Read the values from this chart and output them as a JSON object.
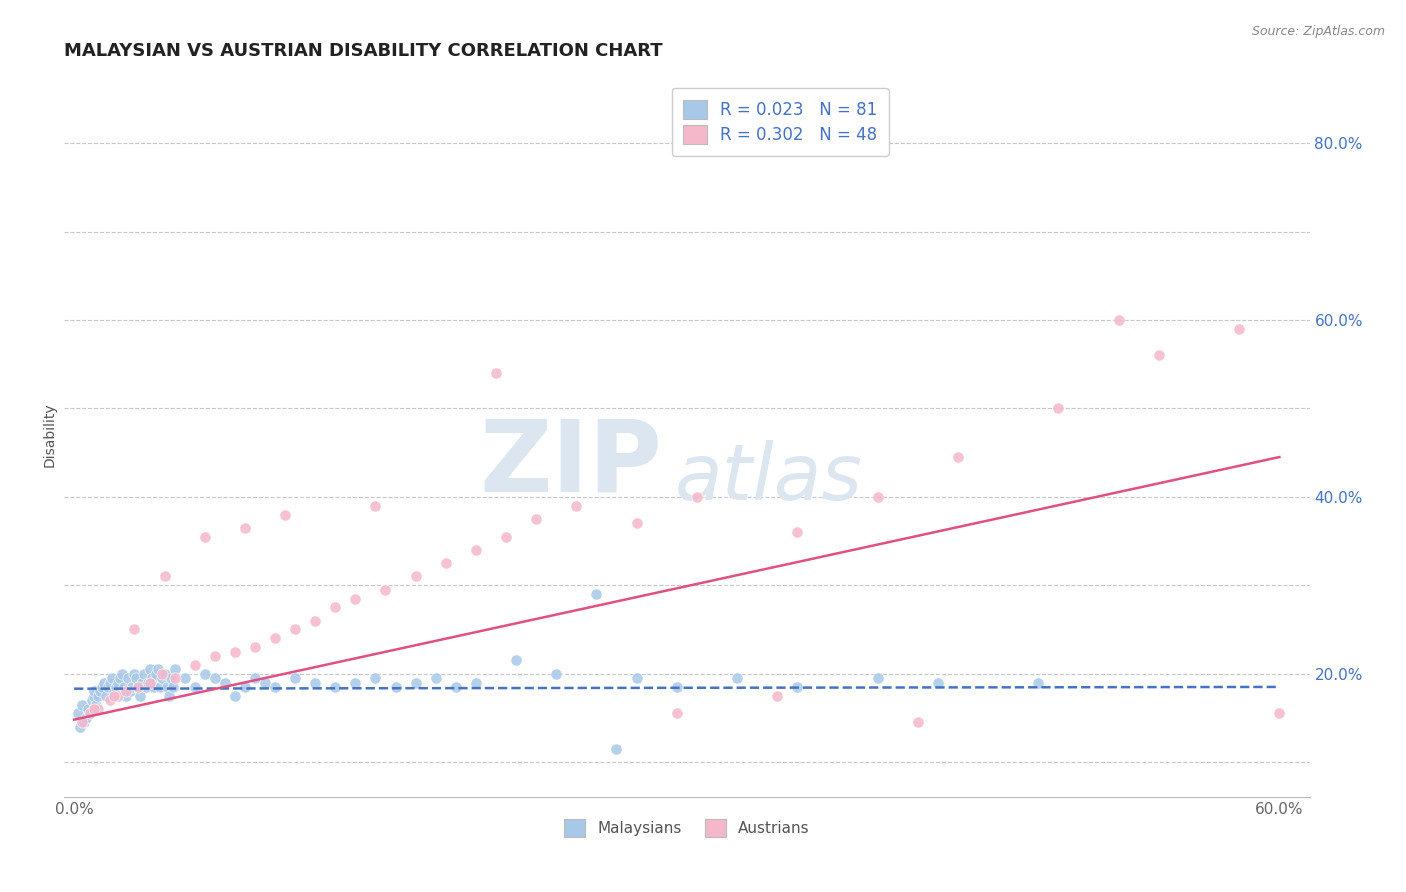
{
  "title": "MALAYSIAN VS AUSTRIAN DISABILITY CORRELATION CHART",
  "source": "Source: ZipAtlas.com",
  "ylabel": "Disability",
  "xlim": [
    -0.005,
    0.615
  ],
  "ylim": [
    0.06,
    0.88
  ],
  "xticks": [
    0.0,
    0.1,
    0.2,
    0.3,
    0.4,
    0.5,
    0.6
  ],
  "xticklabels": [
    "0.0%",
    "",
    "",
    "",
    "",
    "",
    "60.0%"
  ],
  "yticks": [
    0.1,
    0.2,
    0.3,
    0.4,
    0.5,
    0.6,
    0.7,
    0.8
  ],
  "yticklabels": [
    "",
    "20.0%",
    "",
    "40.0%",
    "",
    "60.0%",
    "",
    "80.0%"
  ],
  "legend_label1": "Malaysians",
  "legend_label2": "Austrians",
  "color_blue": "#a8c8e8",
  "color_pink": "#f5b8cb",
  "color_blue_line": "#4472c4",
  "color_pink_line": "#e05080",
  "watermark_zip": "ZIP",
  "watermark_atlas": "atlas",
  "watermark_color": "#dce6f0",
  "watermark_fontsize_zip": 72,
  "watermark_fontsize_atlas": 56,
  "title_fontsize": 13,
  "tick_fontsize": 11,
  "background_color": "#ffffff",
  "grid_color": "#c8c8c8",
  "malaysian_trendline": [
    0.0,
    0.6,
    0.183,
    0.185
  ],
  "austrian_trendline": [
    0.0,
    0.6,
    0.148,
    0.445
  ],
  "malay_x": [
    0.002,
    0.003,
    0.004,
    0.005,
    0.006,
    0.007,
    0.008,
    0.009,
    0.01,
    0.01,
    0.011,
    0.012,
    0.013,
    0.014,
    0.015,
    0.016,
    0.017,
    0.018,
    0.019,
    0.02,
    0.021,
    0.022,
    0.023,
    0.024,
    0.025,
    0.026,
    0.027,
    0.028,
    0.029,
    0.03,
    0.031,
    0.032,
    0.033,
    0.034,
    0.035,
    0.036,
    0.037,
    0.038,
    0.039,
    0.04,
    0.041,
    0.042,
    0.043,
    0.044,
    0.045,
    0.046,
    0.047,
    0.048,
    0.049,
    0.05,
    0.055,
    0.06,
    0.065,
    0.07,
    0.075,
    0.08,
    0.085,
    0.09,
    0.095,
    0.1,
    0.11,
    0.12,
    0.13,
    0.14,
    0.15,
    0.16,
    0.17,
    0.18,
    0.19,
    0.2,
    0.22,
    0.24,
    0.26,
    0.28,
    0.3,
    0.33,
    0.36,
    0.4,
    0.43,
    0.48,
    0.27
  ],
  "malay_y": [
    0.155,
    0.14,
    0.165,
    0.145,
    0.15,
    0.16,
    0.155,
    0.17,
    0.175,
    0.18,
    0.165,
    0.175,
    0.18,
    0.185,
    0.19,
    0.175,
    0.185,
    0.19,
    0.195,
    0.18,
    0.185,
    0.19,
    0.195,
    0.2,
    0.185,
    0.175,
    0.195,
    0.18,
    0.185,
    0.2,
    0.195,
    0.185,
    0.175,
    0.19,
    0.2,
    0.185,
    0.19,
    0.205,
    0.195,
    0.185,
    0.2,
    0.205,
    0.185,
    0.195,
    0.2,
    0.185,
    0.175,
    0.195,
    0.185,
    0.205,
    0.195,
    0.185,
    0.2,
    0.195,
    0.19,
    0.175,
    0.185,
    0.195,
    0.19,
    0.185,
    0.195,
    0.19,
    0.185,
    0.19,
    0.195,
    0.185,
    0.19,
    0.195,
    0.185,
    0.19,
    0.215,
    0.2,
    0.29,
    0.195,
    0.185,
    0.195,
    0.185,
    0.195,
    0.19,
    0.19,
    0.115
  ],
  "austria_x": [
    0.004,
    0.008,
    0.012,
    0.018,
    0.022,
    0.026,
    0.032,
    0.038,
    0.044,
    0.05,
    0.06,
    0.07,
    0.08,
    0.09,
    0.1,
    0.11,
    0.12,
    0.13,
    0.14,
    0.155,
    0.17,
    0.185,
    0.2,
    0.215,
    0.23,
    0.25,
    0.28,
    0.31,
    0.36,
    0.4,
    0.44,
    0.49,
    0.54,
    0.58,
    0.01,
    0.02,
    0.03,
    0.045,
    0.065,
    0.085,
    0.105,
    0.15,
    0.21,
    0.3,
    0.35,
    0.42,
    0.52,
    0.6
  ],
  "austria_y": [
    0.145,
    0.155,
    0.16,
    0.17,
    0.175,
    0.18,
    0.185,
    0.19,
    0.2,
    0.195,
    0.21,
    0.22,
    0.225,
    0.23,
    0.24,
    0.25,
    0.26,
    0.275,
    0.285,
    0.295,
    0.31,
    0.325,
    0.34,
    0.355,
    0.375,
    0.39,
    0.37,
    0.4,
    0.36,
    0.4,
    0.445,
    0.5,
    0.56,
    0.59,
    0.16,
    0.175,
    0.25,
    0.31,
    0.355,
    0.365,
    0.38,
    0.39,
    0.54,
    0.155,
    0.175,
    0.145,
    0.6,
    0.155
  ]
}
